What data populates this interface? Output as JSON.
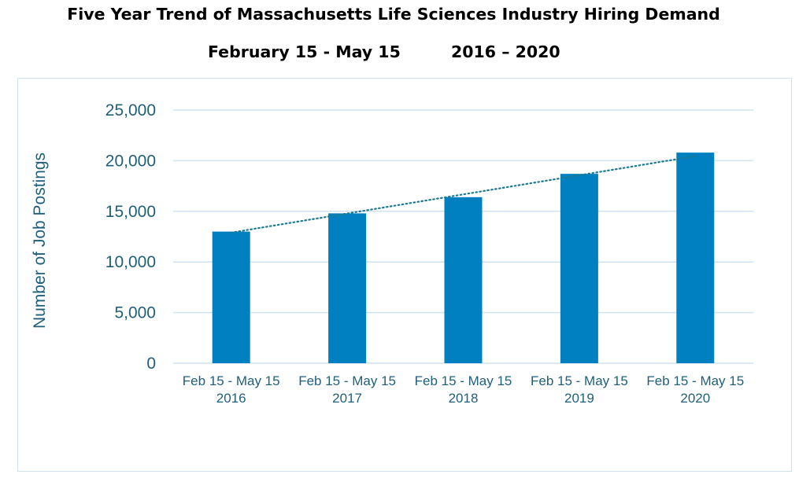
{
  "title": "Five Year Trend of Massachusetts Life Sciences Industry Hiring Demand",
  "subtitle_left": "February 15 - May 15",
  "subtitle_right": "2016 – 2020",
  "colors": {
    "bar": "#0080c0",
    "trendline": "#1a7a94",
    "gridline": "#cfe3ee",
    "axis_text": "#1f5f7a"
  },
  "chart_data": {
    "type": "bar",
    "categories": [
      [
        "Feb 15 - May 15",
        "2016"
      ],
      [
        "Feb 15 - May 15",
        "2017"
      ],
      [
        "Feb 15 - May 15",
        "2018"
      ],
      [
        "Feb 15 - May 15",
        "2019"
      ],
      [
        "Feb 15 - May 15",
        "2020"
      ]
    ],
    "values": [
      13000,
      14800,
      16400,
      18700,
      20800
    ],
    "ylabel": "Number of Job Postings",
    "ylim": [
      0,
      25000
    ],
    "yticks": [
      "0",
      "5,000",
      "10,000",
      "15,000",
      "20,000",
      "25,000"
    ],
    "ytick_values": [
      0,
      5000,
      10000,
      15000,
      20000,
      25000
    ],
    "grid": true,
    "trendline": {
      "style": "dotted",
      "type": "linear",
      "start": 12900,
      "end": 20450
    }
  }
}
